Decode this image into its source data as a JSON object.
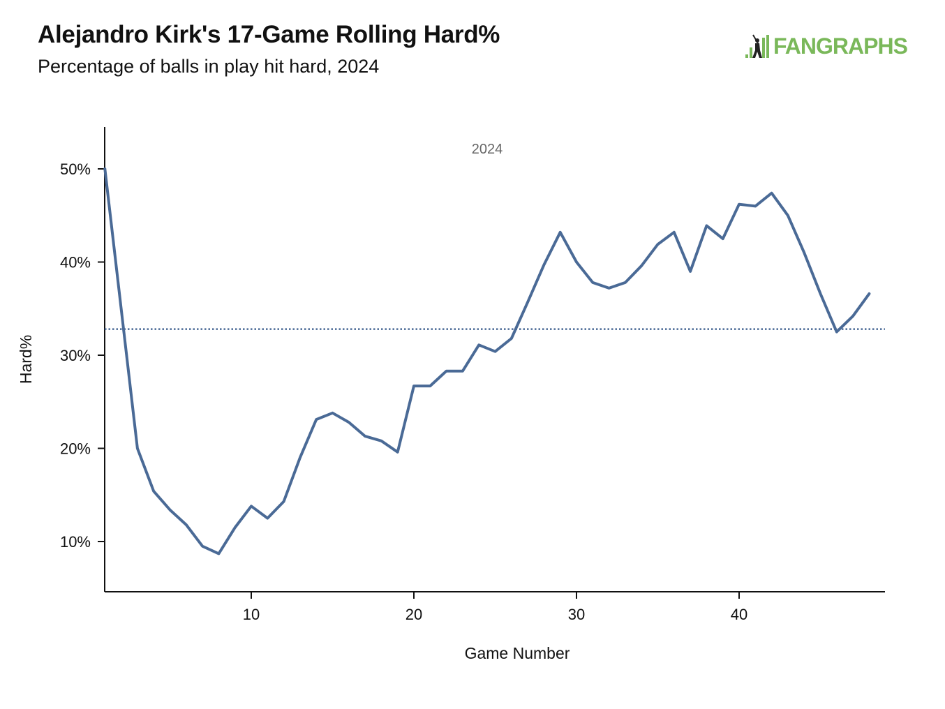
{
  "header": {
    "title": "Alejandro Kirk's 17-Game Rolling Hard%",
    "subtitle": "Percentage of balls in play hit hard, 2024"
  },
  "logo": {
    "text": "FANGRAPHS",
    "icon": "batter-icon",
    "color": "#7ab85a"
  },
  "chart_data": {
    "type": "line",
    "title": "Alejandro Kirk's 17-Game Rolling Hard%",
    "subtitle": "Percentage of balls in play hit hard, 2024",
    "xlabel": "Game Number",
    "ylabel": "Hard%",
    "xlim": [
      1,
      49
    ],
    "ylim": [
      5,
      55
    ],
    "x_ticks": [
      10,
      20,
      30,
      40
    ],
    "y_ticks": [
      10,
      20,
      30,
      40,
      50
    ],
    "y_tick_labels": [
      "10%",
      "20%",
      "30%",
      "40%",
      "50%"
    ],
    "x_tick_labels": [
      "10",
      "20",
      "30",
      "40"
    ],
    "annotation": "2024",
    "reference_line": {
      "value": 32.8,
      "style": "dotted"
    },
    "line_color": "#4a6a96",
    "grid": false,
    "series": [
      {
        "x": [
          1,
          2,
          3,
          4,
          5,
          6,
          7,
          8,
          9,
          10,
          11,
          12,
          13,
          14,
          15,
          16,
          17,
          18,
          19,
          20,
          21,
          22,
          23,
          24,
          25,
          26,
          27,
          28,
          29,
          30,
          31,
          32,
          33,
          34,
          35,
          36,
          37,
          38,
          39,
          40,
          41,
          42,
          43,
          44,
          45,
          46,
          47,
          48
        ],
        "values": [
          50.0,
          35.0,
          20.0,
          15.4,
          13.4,
          11.8,
          9.5,
          8.7,
          11.5,
          13.8,
          12.5,
          14.3,
          19.0,
          23.1,
          23.8,
          22.8,
          21.3,
          20.8,
          19.6,
          26.7,
          26.7,
          28.3,
          28.3,
          31.1,
          30.4,
          31.8,
          35.7,
          39.7,
          43.2,
          40.0,
          37.8,
          37.2,
          37.8,
          39.6,
          41.9,
          43.2,
          39.0,
          43.9,
          42.5,
          46.2,
          46.0,
          47.4,
          45.0,
          41.0,
          36.6,
          32.5,
          34.2,
          36.6
        ]
      }
    ]
  }
}
